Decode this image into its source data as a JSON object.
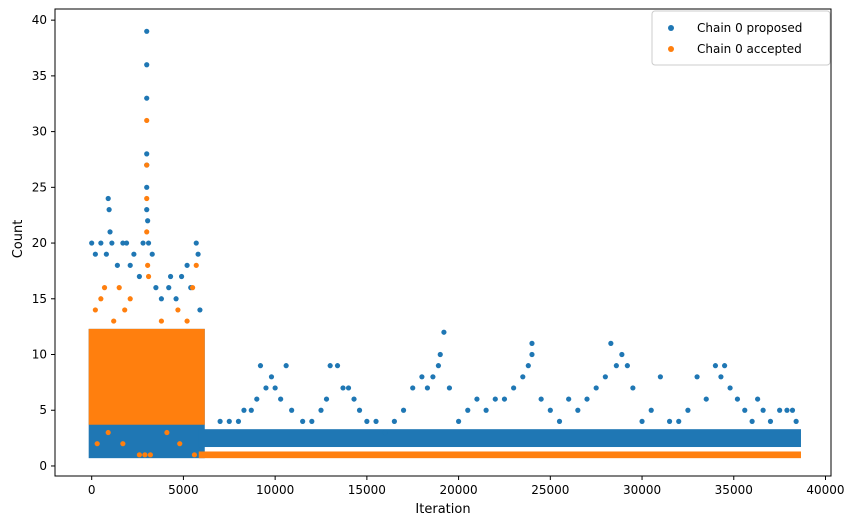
{
  "colors": {
    "proposed": "#1f77b4",
    "accepted": "#ff7f0e",
    "axes": "#000000",
    "background": "#ffffff"
  },
  "chart_data": {
    "type": "scatter",
    "title": "",
    "xlabel": "Iteration",
    "ylabel": "Count",
    "xlim": [
      -2000,
      40300
    ],
    "ylim": [
      -0.9,
      41
    ],
    "xticks": [
      0,
      5000,
      10000,
      15000,
      20000,
      25000,
      30000,
      35000,
      40000
    ],
    "yticks": [
      0,
      5,
      10,
      15,
      20,
      25,
      30,
      35,
      40
    ],
    "grid": false,
    "legend_position": "top-right",
    "series": [
      {
        "name": "Chain 0 proposed",
        "color": "#1f77b4",
        "marker": "circle",
        "points": [
          {
            "x": 0,
            "y": 20
          },
          {
            "x": 200,
            "y": 19
          },
          {
            "x": 500,
            "y": 20
          },
          {
            "x": 800,
            "y": 19
          },
          {
            "x": 900,
            "y": 24
          },
          {
            "x": 950,
            "y": 23
          },
          {
            "x": 1000,
            "y": 21
          },
          {
            "x": 1100,
            "y": 20
          },
          {
            "x": 1400,
            "y": 18
          },
          {
            "x": 1700,
            "y": 20
          },
          {
            "x": 1900,
            "y": 20
          },
          {
            "x": 2100,
            "y": 18
          },
          {
            "x": 2300,
            "y": 19
          },
          {
            "x": 2600,
            "y": 17
          },
          {
            "x": 2800,
            "y": 20
          },
          {
            "x": 3000,
            "y": 39
          },
          {
            "x": 3000,
            "y": 36
          },
          {
            "x": 3000,
            "y": 33
          },
          {
            "x": 3000,
            "y": 28
          },
          {
            "x": 3000,
            "y": 27
          },
          {
            "x": 3000,
            "y": 25
          },
          {
            "x": 3000,
            "y": 23
          },
          {
            "x": 3050,
            "y": 22
          },
          {
            "x": 3100,
            "y": 20
          },
          {
            "x": 3300,
            "y": 19
          },
          {
            "x": 3500,
            "y": 16
          },
          {
            "x": 3800,
            "y": 15
          },
          {
            "x": 4200,
            "y": 16
          },
          {
            "x": 4300,
            "y": 17
          },
          {
            "x": 4600,
            "y": 15
          },
          {
            "x": 4900,
            "y": 17
          },
          {
            "x": 5200,
            "y": 18
          },
          {
            "x": 5400,
            "y": 16
          },
          {
            "x": 5700,
            "y": 20
          },
          {
            "x": 5800,
            "y": 19
          },
          {
            "x": 5900,
            "y": 14
          },
          {
            "x": 7000,
            "y": 4
          },
          {
            "x": 7500,
            "y": 4
          },
          {
            "x": 8000,
            "y": 4
          },
          {
            "x": 8300,
            "y": 5
          },
          {
            "x": 8700,
            "y": 5
          },
          {
            "x": 9000,
            "y": 6
          },
          {
            "x": 9200,
            "y": 9
          },
          {
            "x": 9500,
            "y": 7
          },
          {
            "x": 9800,
            "y": 8
          },
          {
            "x": 10000,
            "y": 7
          },
          {
            "x": 10300,
            "y": 6
          },
          {
            "x": 10600,
            "y": 9
          },
          {
            "x": 10900,
            "y": 5
          },
          {
            "x": 11500,
            "y": 4
          },
          {
            "x": 12000,
            "y": 4
          },
          {
            "x": 12500,
            "y": 5
          },
          {
            "x": 12800,
            "y": 6
          },
          {
            "x": 13000,
            "y": 9
          },
          {
            "x": 13400,
            "y": 9
          },
          {
            "x": 13700,
            "y": 7
          },
          {
            "x": 14000,
            "y": 7
          },
          {
            "x": 14300,
            "y": 6
          },
          {
            "x": 14600,
            "y": 5
          },
          {
            "x": 15000,
            "y": 4
          },
          {
            "x": 15500,
            "y": 4
          },
          {
            "x": 16000,
            "y": 3
          },
          {
            "x": 16500,
            "y": 4
          },
          {
            "x": 17000,
            "y": 5
          },
          {
            "x": 17500,
            "y": 7
          },
          {
            "x": 18000,
            "y": 8
          },
          {
            "x": 18300,
            "y": 7
          },
          {
            "x": 18600,
            "y": 8
          },
          {
            "x": 18900,
            "y": 9
          },
          {
            "x": 19000,
            "y": 10
          },
          {
            "x": 19200,
            "y": 12
          },
          {
            "x": 19500,
            "y": 7
          },
          {
            "x": 20000,
            "y": 4
          },
          {
            "x": 20500,
            "y": 5
          },
          {
            "x": 21000,
            "y": 6
          },
          {
            "x": 21500,
            "y": 5
          },
          {
            "x": 22000,
            "y": 6
          },
          {
            "x": 22500,
            "y": 6
          },
          {
            "x": 23000,
            "y": 7
          },
          {
            "x": 23500,
            "y": 8
          },
          {
            "x": 23800,
            "y": 9
          },
          {
            "x": 24000,
            "y": 11
          },
          {
            "x": 24000,
            "y": 10
          },
          {
            "x": 24500,
            "y": 6
          },
          {
            "x": 25000,
            "y": 5
          },
          {
            "x": 25500,
            "y": 4
          },
          {
            "x": 26000,
            "y": 6
          },
          {
            "x": 26500,
            "y": 5
          },
          {
            "x": 27000,
            "y": 6
          },
          {
            "x": 27500,
            "y": 7
          },
          {
            "x": 28000,
            "y": 8
          },
          {
            "x": 28300,
            "y": 11
          },
          {
            "x": 28600,
            "y": 9
          },
          {
            "x": 28900,
            "y": 10
          },
          {
            "x": 29200,
            "y": 9
          },
          {
            "x": 29500,
            "y": 7
          },
          {
            "x": 30000,
            "y": 4
          },
          {
            "x": 30500,
            "y": 5
          },
          {
            "x": 31000,
            "y": 8
          },
          {
            "x": 31500,
            "y": 4
          },
          {
            "x": 32000,
            "y": 4
          },
          {
            "x": 32500,
            "y": 5
          },
          {
            "x": 33000,
            "y": 8
          },
          {
            "x": 33500,
            "y": 6
          },
          {
            "x": 34000,
            "y": 9
          },
          {
            "x": 34300,
            "y": 8
          },
          {
            "x": 34500,
            "y": 9
          },
          {
            "x": 34800,
            "y": 7
          },
          {
            "x": 35200,
            "y": 6
          },
          {
            "x": 35600,
            "y": 5
          },
          {
            "x": 36000,
            "y": 4
          },
          {
            "x": 36300,
            "y": 6
          },
          {
            "x": 36600,
            "y": 5
          },
          {
            "x": 37000,
            "y": 4
          },
          {
            "x": 37500,
            "y": 5
          },
          {
            "x": 37900,
            "y": 5
          },
          {
            "x": 38200,
            "y": 5
          },
          {
            "x": 38400,
            "y": 4
          }
        ],
        "bands": [
          {
            "x": [
              0,
              6000
            ],
            "ymin": 1,
            "ymax": 12
          },
          {
            "x": [
              6000,
              38500
            ],
            "ymin": 2,
            "ymax": 3
          }
        ]
      },
      {
        "name": "Chain 0 accepted",
        "color": "#ff7f0e",
        "marker": "circle",
        "points": [
          {
            "x": 3000,
            "y": 31
          },
          {
            "x": 3000,
            "y": 27
          },
          {
            "x": 3000,
            "y": 24
          },
          {
            "x": 3000,
            "y": 21
          },
          {
            "x": 3050,
            "y": 18
          },
          {
            "x": 3100,
            "y": 17
          },
          {
            "x": 5700,
            "y": 18
          },
          {
            "x": 5500,
            "y": 16
          },
          {
            "x": 1500,
            "y": 16
          },
          {
            "x": 700,
            "y": 16
          },
          {
            "x": 2100,
            "y": 15
          },
          {
            "x": 1800,
            "y": 14
          },
          {
            "x": 4700,
            "y": 14
          },
          {
            "x": 5200,
            "y": 13
          },
          {
            "x": 3800,
            "y": 13
          },
          {
            "x": 200,
            "y": 14
          },
          {
            "x": 500,
            "y": 15
          },
          {
            "x": 1200,
            "y": 13
          },
          {
            "x": 2600,
            "y": 1
          },
          {
            "x": 2900,
            "y": 1
          },
          {
            "x": 3200,
            "y": 1
          },
          {
            "x": 300,
            "y": 2
          },
          {
            "x": 900,
            "y": 3
          },
          {
            "x": 1700,
            "y": 2
          },
          {
            "x": 4100,
            "y": 3
          },
          {
            "x": 4800,
            "y": 2
          },
          {
            "x": 5600,
            "y": 1
          }
        ],
        "bands": [
          {
            "x": [
              0,
              6000
            ],
            "ymin": 4,
            "ymax": 12
          },
          {
            "x": [
              6000,
              38500
            ],
            "ymin": 1,
            "ymax": 1
          }
        ]
      }
    ]
  }
}
